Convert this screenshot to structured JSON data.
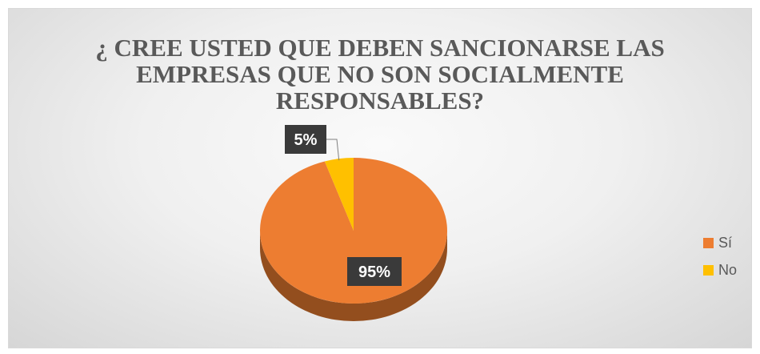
{
  "chart_data": {
    "type": "pie",
    "title": "¿ CREE USTED QUE DEBEN SANCIONARSE LAS\nEMPRESAS QUE NO SON SOCIALMENTE\nRESPONSABLES?",
    "series": [
      {
        "values": [
          95,
          5
        ]
      }
    ],
    "categories": [
      "Sí",
      "No"
    ],
    "slices": [
      {
        "label": "Sí",
        "value": 95,
        "data_label": "95%",
        "color": "#ED7D31"
      },
      {
        "label": "No",
        "value": 5,
        "data_label": "5%",
        "color": "#FFC000"
      }
    ],
    "legend_position": "right",
    "style": "3d"
  }
}
